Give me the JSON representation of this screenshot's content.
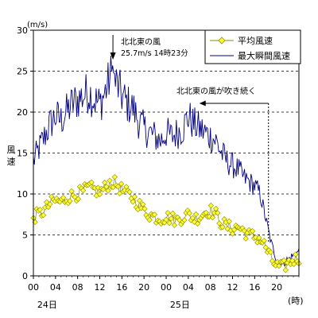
{
  "chart_data": {
    "type": "line",
    "unit_label": "(m/s)",
    "ylabel": "風速",
    "x_unit_label": "(時)",
    "ylim": [
      0,
      30
    ],
    "y_ticks": [
      "0",
      "5",
      "10",
      "15",
      "20",
      "25",
      "30"
    ],
    "grid": "horizontal-dashed",
    "x_range_hours": [
      0,
      48
    ],
    "x_ticks": [
      {
        "h": 0,
        "label": "00"
      },
      {
        "h": 4,
        "label": "04"
      },
      {
        "h": 8,
        "label": "08"
      },
      {
        "h": 12,
        "label": "12"
      },
      {
        "h": 16,
        "label": "16"
      },
      {
        "h": 20,
        "label": "20"
      },
      {
        "h": 24,
        "label": "00"
      },
      {
        "h": 28,
        "label": "04"
      },
      {
        "h": 32,
        "label": "08"
      },
      {
        "h": 36,
        "label": "12"
      },
      {
        "h": 40,
        "label": "16"
      },
      {
        "h": 44,
        "label": "20"
      }
    ],
    "day_labels": [
      {
        "h": 2.5,
        "label": "24日"
      },
      {
        "h": 26.5,
        "label": "25日"
      }
    ],
    "legend_position": "top-right",
    "series": [
      {
        "name": "平均風速",
        "color": "#ffff33",
        "style": "line-diamond",
        "x": [
          0,
          1,
          2,
          3,
          4,
          5,
          6,
          7,
          8,
          9,
          10,
          11,
          12,
          13,
          14,
          15,
          16,
          17,
          18,
          19,
          20,
          21,
          22,
          23,
          24,
          25,
          26,
          27,
          28,
          29,
          30,
          31,
          32,
          33,
          34,
          35,
          36,
          37,
          38,
          39,
          40,
          41,
          42,
          43,
          44,
          45,
          46,
          47,
          48
        ],
        "values": [
          7.2,
          7.5,
          8.0,
          8.8,
          9.2,
          9.0,
          9.5,
          9.8,
          10.0,
          10.3,
          10.8,
          10.5,
          10.2,
          10.8,
          11.5,
          11.2,
          10.5,
          10.0,
          9.5,
          8.8,
          8.0,
          7.5,
          7.2,
          7.0,
          7.2,
          7.0,
          6.8,
          7.2,
          7.5,
          7.0,
          7.2,
          7.8,
          8.0,
          7.5,
          6.5,
          6.0,
          5.8,
          6.0,
          5.5,
          5.0,
          4.8,
          4.5,
          3.5,
          2.0,
          1.2,
          1.0,
          1.5,
          2.0,
          2.2
        ]
      },
      {
        "name": "最大瞬間風速",
        "color": "#000080",
        "style": "line",
        "x": [
          0,
          1,
          2,
          3,
          4,
          5,
          6,
          7,
          8,
          9,
          10,
          11,
          12,
          13,
          14,
          15,
          16,
          17,
          18,
          19,
          20,
          21,
          22,
          23,
          24,
          25,
          26,
          27,
          28,
          29,
          30,
          31,
          32,
          33,
          34,
          35,
          36,
          37,
          38,
          39,
          40,
          41,
          42,
          43,
          44,
          45,
          46,
          47,
          48
        ],
        "values": [
          14.0,
          15.5,
          17.0,
          18.5,
          19.5,
          19.0,
          20.0,
          21.0,
          21.5,
          22.0,
          22.5,
          21.5,
          21.0,
          22.5,
          24.5,
          23.5,
          22.0,
          21.0,
          20.5,
          19.0,
          18.0,
          17.5,
          17.0,
          16.5,
          17.5,
          17.0,
          17.5,
          18.0,
          19.5,
          18.5,
          18.0,
          17.5,
          17.0,
          16.5,
          15.0,
          14.0,
          13.5,
          13.0,
          12.0,
          11.5,
          11.0,
          10.0,
          7.0,
          4.0,
          2.0,
          1.5,
          2.0,
          2.5,
          3.0
        ]
      }
    ],
    "annotations": {
      "peak": {
        "line1": "北北東の風",
        "line2": "25.7m/s 14時23分",
        "h": 14.38,
        "v": 25.7
      },
      "continues": {
        "text": "北北東の風が吹き続く",
        "from_h": 42.5,
        "to_h": 30
      }
    }
  }
}
